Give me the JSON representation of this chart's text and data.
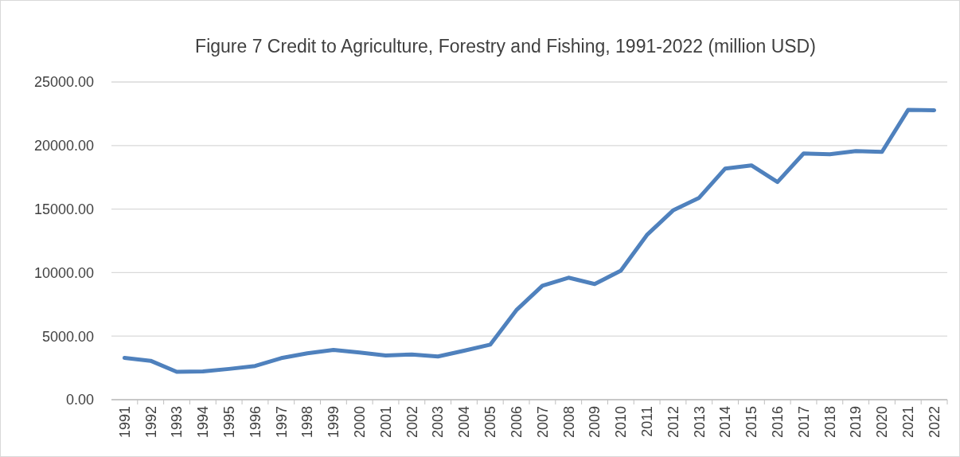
{
  "chart_data": {
    "type": "line",
    "title": "Figure 7 Credit to Agriculture, Forestry and Fishing, 1991-2022 (million USD)",
    "categories": [
      "1991",
      "1992",
      "1993",
      "1994",
      "1995",
      "1996",
      "1997",
      "1998",
      "1999",
      "2000",
      "2001",
      "2002",
      "2003",
      "2004",
      "2005",
      "2006",
      "2007",
      "2008",
      "2009",
      "2010",
      "2011",
      "2012",
      "2013",
      "2014",
      "2015",
      "2016",
      "2017",
      "2018",
      "2019",
      "2020",
      "2021",
      "2022"
    ],
    "series": [
      {
        "color": "#4f81bd",
        "values": [
          3290,
          3060,
          2190,
          2230,
          2420,
          2650,
          3270,
          3650,
          3920,
          3710,
          3480,
          3560,
          3400,
          3850,
          4330,
          7040,
          8970,
          9600,
          9100,
          10150,
          12960,
          14890,
          15890,
          18190,
          18440,
          17130,
          19380,
          19310,
          19560,
          19500,
          22800,
          22780
        ]
      }
    ],
    "ylim": [
      0,
      25000
    ],
    "yticks": [
      {
        "value": 0,
        "label": "0.00"
      },
      {
        "value": 5000,
        "label": "5000.00"
      },
      {
        "value": 10000,
        "label": "10000.00"
      },
      {
        "value": 15000,
        "label": "15000.00"
      },
      {
        "value": 20000,
        "label": "20000.00"
      },
      {
        "value": 25000,
        "label": "25000.00"
      }
    ],
    "grid": "y",
    "marker": "none",
    "line_style": "solid"
  }
}
